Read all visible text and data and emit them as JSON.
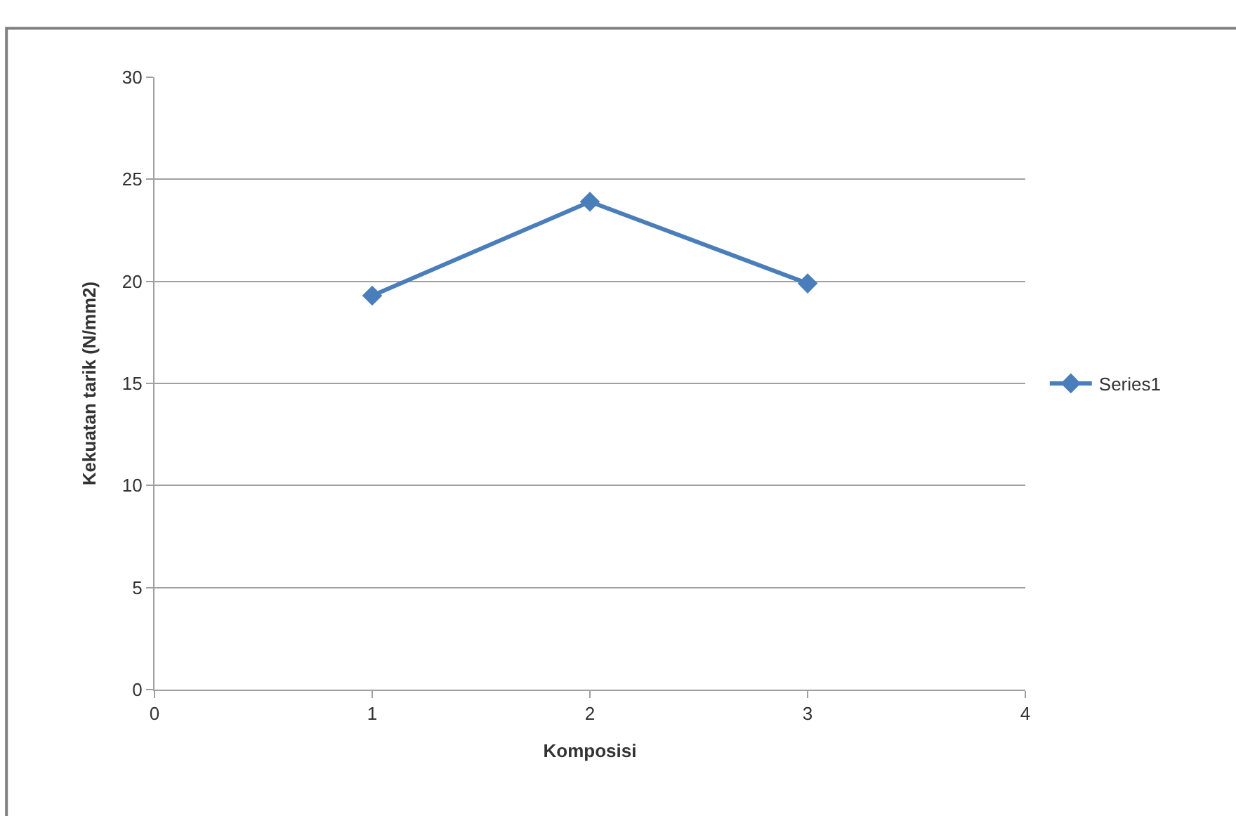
{
  "chart_data": {
    "type": "line",
    "xlabel": "Komposisi",
    "ylabel": "Kekuatan tarik (N/mm2)",
    "x": [
      1,
      2,
      3
    ],
    "series": [
      {
        "name": "Series1",
        "color": "#4a7ebb",
        "values": [
          19.3,
          23.9,
          19.9
        ]
      }
    ],
    "xlim": [
      0,
      4
    ],
    "xticks": [
      0,
      1,
      2,
      3,
      4
    ],
    "ylim": [
      0,
      30
    ],
    "yticks": [
      0,
      5,
      10,
      15,
      20,
      25,
      30
    ],
    "grid": "y",
    "legend": "right",
    "marker": "diamond",
    "line_style": "solid"
  }
}
